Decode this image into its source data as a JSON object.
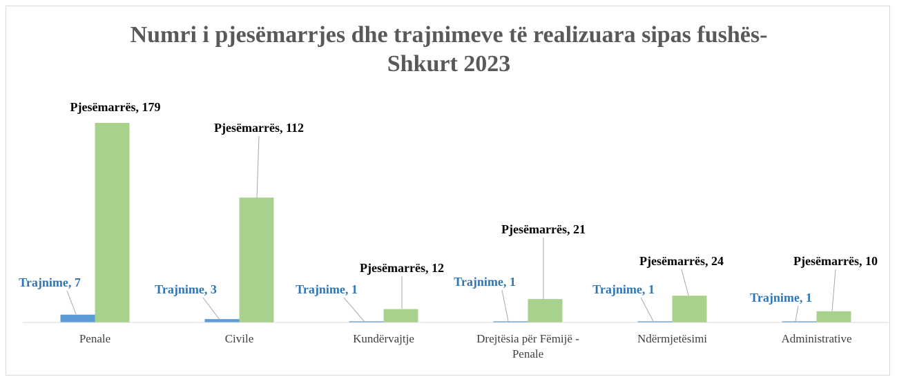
{
  "chart_data": {
    "type": "bar",
    "title": "Numri i pjesëmarrjes dhe trajnimeve të realizuara sipas fushës-Shkurt 2023",
    "categories": [
      "Penale",
      "Civile",
      "Kundërvajtje",
      "Drejtësia për Fëmijë - Penale",
      "Ndërmjetësimi",
      "Administrative"
    ],
    "series": [
      {
        "name": "Trajnime",
        "color": "#5b9bd5",
        "label_color": "#2e75b6",
        "values": [
          7,
          3,
          1,
          1,
          1,
          1
        ],
        "value_labels": [
          "Trajnime, 7",
          "Trajnime, 3",
          "Trajnime, 1",
          "Trajnime, 1",
          "Trajnime, 1",
          "Trajnime, 1"
        ]
      },
      {
        "name": "Pjesëmarrës",
        "color": "#a9d18e",
        "label_color": "#000000",
        "values": [
          179,
          112,
          12,
          21,
          24,
          10
        ],
        "value_labels": [
          "Pjesëmarrës, 179",
          "Pjesëmarrës, 112",
          "Pjesëmarrës, 12",
          "Pjesëmarrës, 21",
          "Pjesëmarrës, 24",
          "Pjesëmarrës, 10"
        ]
      }
    ]
  }
}
